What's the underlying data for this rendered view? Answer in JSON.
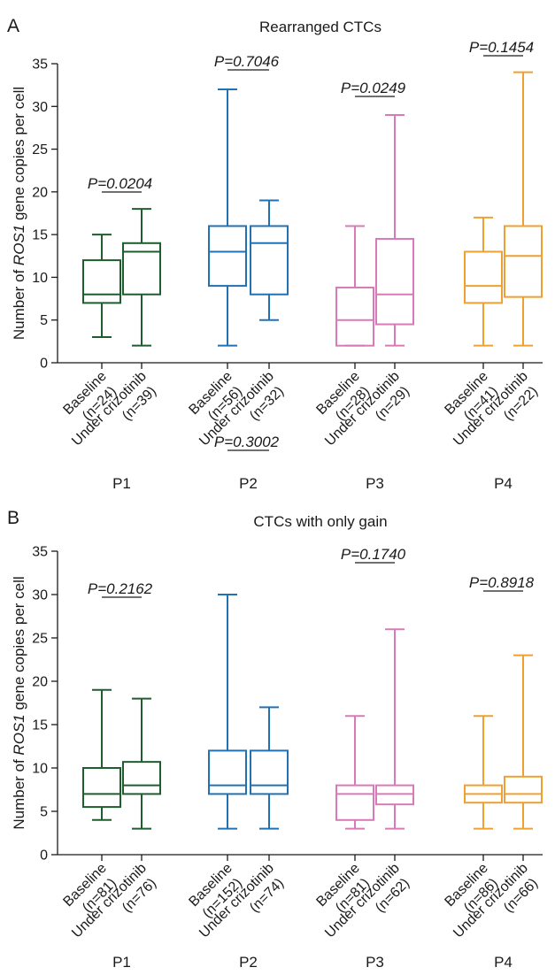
{
  "chart_data": [
    {
      "panel": "A",
      "type": "box",
      "title": "Rearranged CTCs",
      "ylabel_parts": [
        "Number of ",
        "ROS1",
        " gene copies per cell"
      ],
      "ylim": [
        0,
        35
      ],
      "yticks": [
        "0",
        "5",
        "10",
        "15",
        "20",
        "25",
        "30",
        "35"
      ],
      "groups": [
        {
          "patient": "P1",
          "color": "#1f5c2e",
          "p_label": "P=",
          "p_value": "0.0204",
          "boxes": [
            {
              "cat_line1": "Baseline",
              "n_label": "(n=24)",
              "min": 3,
              "q1": 7,
              "median": 8,
              "q3": 12,
              "max": 15
            },
            {
              "cat_line1": "Under crizotinib",
              "n_label": "(n=39)",
              "min": 2,
              "q1": 8,
              "median": 13,
              "q3": 14,
              "max": 18
            }
          ]
        },
        {
          "patient": "P2",
          "color": "#2271b3",
          "p_label": "P=",
          "p_value": "0.7046",
          "boxes": [
            {
              "cat_line1": "Baseline",
              "n_label": "(n=56)",
              "min": 2,
              "q1": 9,
              "median": 13,
              "q3": 16,
              "max": 32
            },
            {
              "cat_line1": "Under crizotinib",
              "n_label": "(n=32)",
              "min": 5,
              "q1": 8,
              "median": 14,
              "q3": 16,
              "max": 19
            }
          ]
        },
        {
          "patient": "P3",
          "color": "#d97ab8",
          "p_label": "P=",
          "p_value": "0.0249",
          "boxes": [
            {
              "cat_line1": "Baseline",
              "n_label": "(n=28)",
              "min": 2,
              "q1": 2,
              "median": 5,
              "q3": 8.8,
              "max": 16
            },
            {
              "cat_line1": "Under crizotinib",
              "n_label": "(n=29)",
              "min": 2,
              "q1": 4.5,
              "median": 8,
              "q3": 14.5,
              "max": 29
            }
          ]
        },
        {
          "patient": "P4",
          "color": "#f0a030",
          "p_label": "P=",
          "p_value": "0.1454",
          "boxes": [
            {
              "cat_line1": "Baseline",
              "n_label": "(n=41)",
              "min": 2,
              "q1": 7,
              "median": 9,
              "q3": 13,
              "max": 17
            },
            {
              "cat_line1": "Under crizotinib",
              "n_label": "(n=22)",
              "min": 2,
              "q1": 7.7,
              "median": 12.5,
              "q3": 16,
              "max": 34
            }
          ]
        }
      ]
    },
    {
      "panel": "B",
      "type": "box",
      "title": "CTCs with only gain",
      "ylabel_parts": [
        "Number of ",
        "ROS1",
        " gene copies per cell"
      ],
      "ylim": [
        0,
        35
      ],
      "yticks": [
        "0",
        "5",
        "10",
        "15",
        "20",
        "25",
        "30",
        "35"
      ],
      "groups": [
        {
          "patient": "P1",
          "color": "#1f5c2e",
          "p_label": "P=",
          "p_value": "0.2162",
          "boxes": [
            {
              "cat_line1": "Baseline",
              "n_label": "(n=81)",
              "min": 4,
              "q1": 5.5,
              "median": 7,
              "q3": 10,
              "max": 19
            },
            {
              "cat_line1": "Under crizotinib",
              "n_label": "(n=76)",
              "min": 3,
              "q1": 7,
              "median": 8,
              "q3": 10.7,
              "max": 18
            }
          ]
        },
        {
          "patient": "P2",
          "color": "#2271b3",
          "p_label": "P=",
          "p_value": "0.3002",
          "boxes": [
            {
              "cat_line1": "Baseline",
              "n_label": "(n=152)",
              "min": 3,
              "q1": 7,
              "median": 8,
              "q3": 12,
              "max": 30
            },
            {
              "cat_line1": "Under crizotinib",
              "n_label": "(n=74)",
              "min": 3,
              "q1": 7,
              "median": 8,
              "q3": 12,
              "max": 17
            }
          ]
        },
        {
          "patient": "P3",
          "color": "#d97ab8",
          "p_label": "P=",
          "p_value": "0.1740",
          "boxes": [
            {
              "cat_line1": "Baseline",
              "n_label": "(n=81)",
              "min": 3,
              "q1": 4,
              "median": 7,
              "q3": 8,
              "max": 16
            },
            {
              "cat_line1": "Under crizotinib",
              "n_label": "(n=62)",
              "min": 3,
              "q1": 5.8,
              "median": 7,
              "q3": 8,
              "max": 26
            }
          ]
        },
        {
          "patient": "P4",
          "color": "#f0a030",
          "p_label": "P=",
          "p_value": "0.8918",
          "boxes": [
            {
              "cat_line1": "Baseline",
              "n_label": "(n=86)",
              "min": 3,
              "q1": 6,
              "median": 7,
              "q3": 8,
              "max": 16
            },
            {
              "cat_line1": "Under crizotinib",
              "n_label": "(n=66)",
              "min": 3,
              "q1": 6,
              "median": 7,
              "q3": 9,
              "max": 23
            }
          ]
        }
      ]
    }
  ]
}
